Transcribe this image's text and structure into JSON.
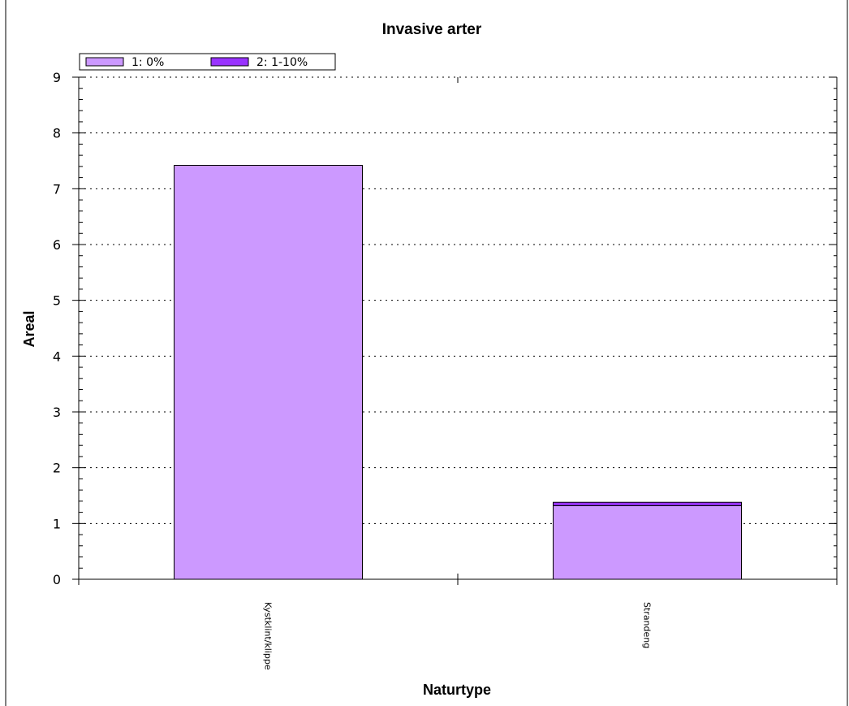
{
  "chart_data": {
    "type": "bar",
    "stacked": true,
    "title": "Invasive arter",
    "xlabel": "Naturtype",
    "ylabel": "Areal",
    "categories": [
      "Kystklint/klippe",
      "Strandeng"
    ],
    "series": [
      {
        "name": "1: 0%",
        "values": [
          7.42,
          1.32
        ],
        "color": "#cc99ff"
      },
      {
        "name": "2: 1-10%",
        "values": [
          0,
          0.06
        ],
        "color": "#9933ff"
      }
    ],
    "ylim": [
      0,
      9
    ],
    "yticks": [
      0,
      1,
      2,
      3,
      4,
      5,
      6,
      7,
      8,
      9
    ],
    "grid": true,
    "legend_position": "top-left"
  }
}
